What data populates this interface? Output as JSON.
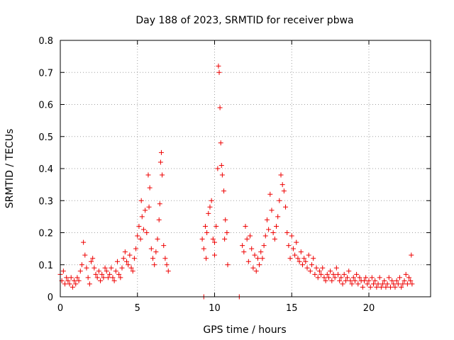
{
  "chart_data": {
    "type": "scatter",
    "title": "Day 188 of 2023, SRMTID for receiver pbwa",
    "xlabel": "GPS time / hours",
    "ylabel": "SRMTID / TECUs",
    "xlim": [
      0,
      24
    ],
    "ylim": [
      0,
      0.8
    ],
    "grid": true,
    "marker": "+",
    "color": "#ee0000",
    "x_ticks": [
      {
        "value": 0,
        "label": "0"
      },
      {
        "value": 5,
        "label": "5"
      },
      {
        "value": 10,
        "label": "10"
      },
      {
        "value": 15,
        "label": "15"
      },
      {
        "value": 20,
        "label": "20"
      }
    ],
    "y_ticks": [
      {
        "value": 0,
        "label": "0"
      },
      {
        "value": 0.1,
        "label": "0.1"
      },
      {
        "value": 0.2,
        "label": "0.2"
      },
      {
        "value": 0.3,
        "label": "0.3"
      },
      {
        "value": 0.4,
        "label": "0.4"
      },
      {
        "value": 0.5,
        "label": "0.5"
      },
      {
        "value": 0.6,
        "label": "0.6"
      },
      {
        "value": 0.7,
        "label": "0.7"
      },
      {
        "value": 0.8,
        "label": "0.8"
      }
    ],
    "series": [
      {
        "name": "SRMTID",
        "points": [
          [
            0.0,
            0.07
          ],
          [
            0.1,
            0.05
          ],
          [
            0.2,
            0.08
          ],
          [
            0.3,
            0.04
          ],
          [
            0.4,
            0.06
          ],
          [
            0.5,
            0.05
          ],
          [
            0.6,
            0.04
          ],
          [
            0.7,
            0.06
          ],
          [
            0.8,
            0.03
          ],
          [
            0.9,
            0.05
          ],
          [
            1.0,
            0.04
          ],
          [
            1.1,
            0.06
          ],
          [
            1.2,
            0.05
          ],
          [
            1.3,
            0.08
          ],
          [
            1.4,
            0.1
          ],
          [
            1.5,
            0.17
          ],
          [
            1.6,
            0.13
          ],
          [
            1.7,
            0.09
          ],
          [
            1.8,
            0.06
          ],
          [
            1.9,
            0.04
          ],
          [
            2.0,
            0.11
          ],
          [
            2.1,
            0.12
          ],
          [
            2.2,
            0.09
          ],
          [
            2.3,
            0.07
          ],
          [
            2.4,
            0.06
          ],
          [
            2.5,
            0.08
          ],
          [
            2.6,
            0.05
          ],
          [
            2.7,
            0.07
          ],
          [
            2.8,
            0.06
          ],
          [
            2.9,
            0.09
          ],
          [
            3.0,
            0.08
          ],
          [
            3.1,
            0.06
          ],
          [
            3.2,
            0.07
          ],
          [
            3.3,
            0.09
          ],
          [
            3.4,
            0.06
          ],
          [
            3.5,
            0.05
          ],
          [
            3.6,
            0.08
          ],
          [
            3.7,
            0.11
          ],
          [
            3.8,
            0.07
          ],
          [
            3.9,
            0.06
          ],
          [
            4.0,
            0.09
          ],
          [
            4.1,
            0.12
          ],
          [
            4.2,
            0.14
          ],
          [
            4.3,
            0.11
          ],
          [
            4.4,
            0.1
          ],
          [
            4.5,
            0.13
          ],
          [
            4.6,
            0.09
          ],
          [
            4.7,
            0.08
          ],
          [
            4.8,
            0.12
          ],
          [
            4.9,
            0.15
          ],
          [
            5.0,
            0.19
          ],
          [
            5.1,
            0.22
          ],
          [
            5.2,
            0.18
          ],
          [
            5.3,
            0.25
          ],
          [
            5.4,
            0.21
          ],
          [
            5.5,
            0.27
          ],
          [
            5.6,
            0.2
          ],
          [
            5.7,
            0.38
          ],
          [
            5.8,
            0.34
          ],
          [
            5.9,
            0.15
          ],
          [
            6.0,
            0.12
          ],
          [
            6.1,
            0.1
          ],
          [
            6.2,
            0.14
          ],
          [
            6.3,
            0.18
          ],
          [
            6.4,
            0.24
          ],
          [
            6.5,
            0.42
          ],
          [
            6.55,
            0.45
          ],
          [
            6.6,
            0.38
          ],
          [
            6.7,
            0.16
          ],
          [
            6.8,
            0.12
          ],
          [
            6.9,
            0.1
          ],
          [
            7.0,
            0.08
          ],
          [
            5.25,
            0.3
          ],
          [
            5.75,
            0.28
          ],
          [
            6.45,
            0.29
          ],
          [
            9.2,
            0.18
          ],
          [
            9.3,
            0.15
          ],
          [
            9.4,
            0.22
          ],
          [
            9.5,
            0.2
          ],
          [
            9.6,
            0.26
          ],
          [
            9.7,
            0.28
          ],
          [
            9.8,
            0.3
          ],
          [
            9.9,
            0.18
          ],
          [
            10.0,
            0.17
          ],
          [
            10.1,
            0.22
          ],
          [
            10.2,
            0.4
          ],
          [
            10.25,
            0.72
          ],
          [
            10.3,
            0.7
          ],
          [
            10.35,
            0.59
          ],
          [
            10.4,
            0.48
          ],
          [
            10.45,
            0.41
          ],
          [
            10.5,
            0.38
          ],
          [
            10.6,
            0.33
          ],
          [
            10.7,
            0.24
          ],
          [
            10.8,
            0.2
          ],
          [
            10.85,
            0.1
          ],
          [
            9.45,
            0.12
          ],
          [
            10.0,
            0.13
          ],
          [
            10.65,
            0.18
          ],
          [
            11.8,
            0.16
          ],
          [
            11.9,
            0.14
          ],
          [
            12.0,
            0.22
          ],
          [
            12.1,
            0.18
          ],
          [
            12.2,
            0.11
          ],
          [
            12.3,
            0.19
          ],
          [
            12.4,
            0.15
          ],
          [
            12.5,
            0.09
          ],
          [
            12.6,
            0.13
          ],
          [
            12.7,
            0.08
          ],
          [
            12.8,
            0.12
          ],
          [
            12.9,
            0.1
          ],
          [
            13.0,
            0.14
          ],
          [
            13.1,
            0.12
          ],
          [
            13.2,
            0.16
          ],
          [
            13.3,
            0.19
          ],
          [
            13.4,
            0.24
          ],
          [
            13.5,
            0.21
          ],
          [
            13.6,
            0.32
          ],
          [
            13.7,
            0.27
          ],
          [
            13.8,
            0.2
          ],
          [
            13.9,
            0.18
          ],
          [
            14.0,
            0.22
          ],
          [
            14.1,
            0.25
          ],
          [
            14.2,
            0.3
          ],
          [
            14.3,
            0.38
          ],
          [
            14.4,
            0.35
          ],
          [
            14.5,
            0.33
          ],
          [
            14.6,
            0.28
          ],
          [
            14.7,
            0.2
          ],
          [
            14.8,
            0.16
          ],
          [
            14.9,
            0.12
          ],
          [
            15.0,
            0.19
          ],
          [
            15.1,
            0.15
          ],
          [
            15.2,
            0.13
          ],
          [
            15.3,
            0.17
          ],
          [
            15.4,
            0.12
          ],
          [
            15.5,
            0.11
          ],
          [
            15.6,
            0.14
          ],
          [
            15.7,
            0.1
          ],
          [
            15.8,
            0.12
          ],
          [
            15.9,
            0.11
          ],
          [
            16.0,
            0.09
          ],
          [
            16.1,
            0.13
          ],
          [
            16.2,
            0.08
          ],
          [
            16.3,
            0.1
          ],
          [
            16.4,
            0.12
          ],
          [
            16.5,
            0.07
          ],
          [
            16.6,
            0.09
          ],
          [
            16.7,
            0.06
          ],
          [
            16.8,
            0.08
          ],
          [
            16.9,
            0.07
          ],
          [
            17.0,
            0.09
          ],
          [
            17.1,
            0.06
          ],
          [
            17.2,
            0.05
          ],
          [
            17.3,
            0.07
          ],
          [
            17.4,
            0.06
          ],
          [
            17.5,
            0.08
          ],
          [
            17.6,
            0.05
          ],
          [
            17.7,
            0.07
          ],
          [
            17.8,
            0.06
          ],
          [
            17.9,
            0.09
          ],
          [
            18.0,
            0.07
          ],
          [
            18.1,
            0.05
          ],
          [
            18.2,
            0.06
          ],
          [
            18.3,
            0.04
          ],
          [
            18.4,
            0.07
          ],
          [
            18.5,
            0.05
          ],
          [
            18.6,
            0.06
          ],
          [
            18.7,
            0.08
          ],
          [
            18.8,
            0.05
          ],
          [
            18.9,
            0.04
          ],
          [
            19.0,
            0.06
          ],
          [
            19.1,
            0.05
          ],
          [
            19.2,
            0.07
          ],
          [
            19.3,
            0.04
          ],
          [
            19.4,
            0.06
          ],
          [
            19.5,
            0.05
          ],
          [
            19.6,
            0.03
          ],
          [
            19.7,
            0.05
          ],
          [
            19.8,
            0.06
          ],
          [
            19.9,
            0.04
          ],
          [
            20.0,
            0.05
          ],
          [
            20.1,
            0.03
          ],
          [
            20.2,
            0.06
          ],
          [
            20.3,
            0.04
          ],
          [
            20.4,
            0.05
          ],
          [
            20.5,
            0.03
          ],
          [
            20.6,
            0.04
          ],
          [
            20.7,
            0.06
          ],
          [
            20.8,
            0.03
          ],
          [
            20.9,
            0.04
          ],
          [
            21.0,
            0.05
          ],
          [
            21.1,
            0.03
          ],
          [
            21.2,
            0.04
          ],
          [
            21.3,
            0.06
          ],
          [
            21.4,
            0.03
          ],
          [
            21.5,
            0.05
          ],
          [
            21.6,
            0.04
          ],
          [
            21.7,
            0.03
          ],
          [
            21.8,
            0.05
          ],
          [
            21.9,
            0.04
          ],
          [
            22.0,
            0.06
          ],
          [
            22.1,
            0.03
          ],
          [
            22.2,
            0.04
          ],
          [
            22.3,
            0.05
          ],
          [
            22.4,
            0.07
          ],
          [
            22.5,
            0.04
          ],
          [
            22.6,
            0.06
          ],
          [
            22.7,
            0.05
          ],
          [
            22.75,
            0.13
          ],
          [
            22.8,
            0.04
          ],
          [
            9.3,
            0.0
          ],
          [
            11.6,
            0.0
          ]
        ]
      }
    ]
  }
}
